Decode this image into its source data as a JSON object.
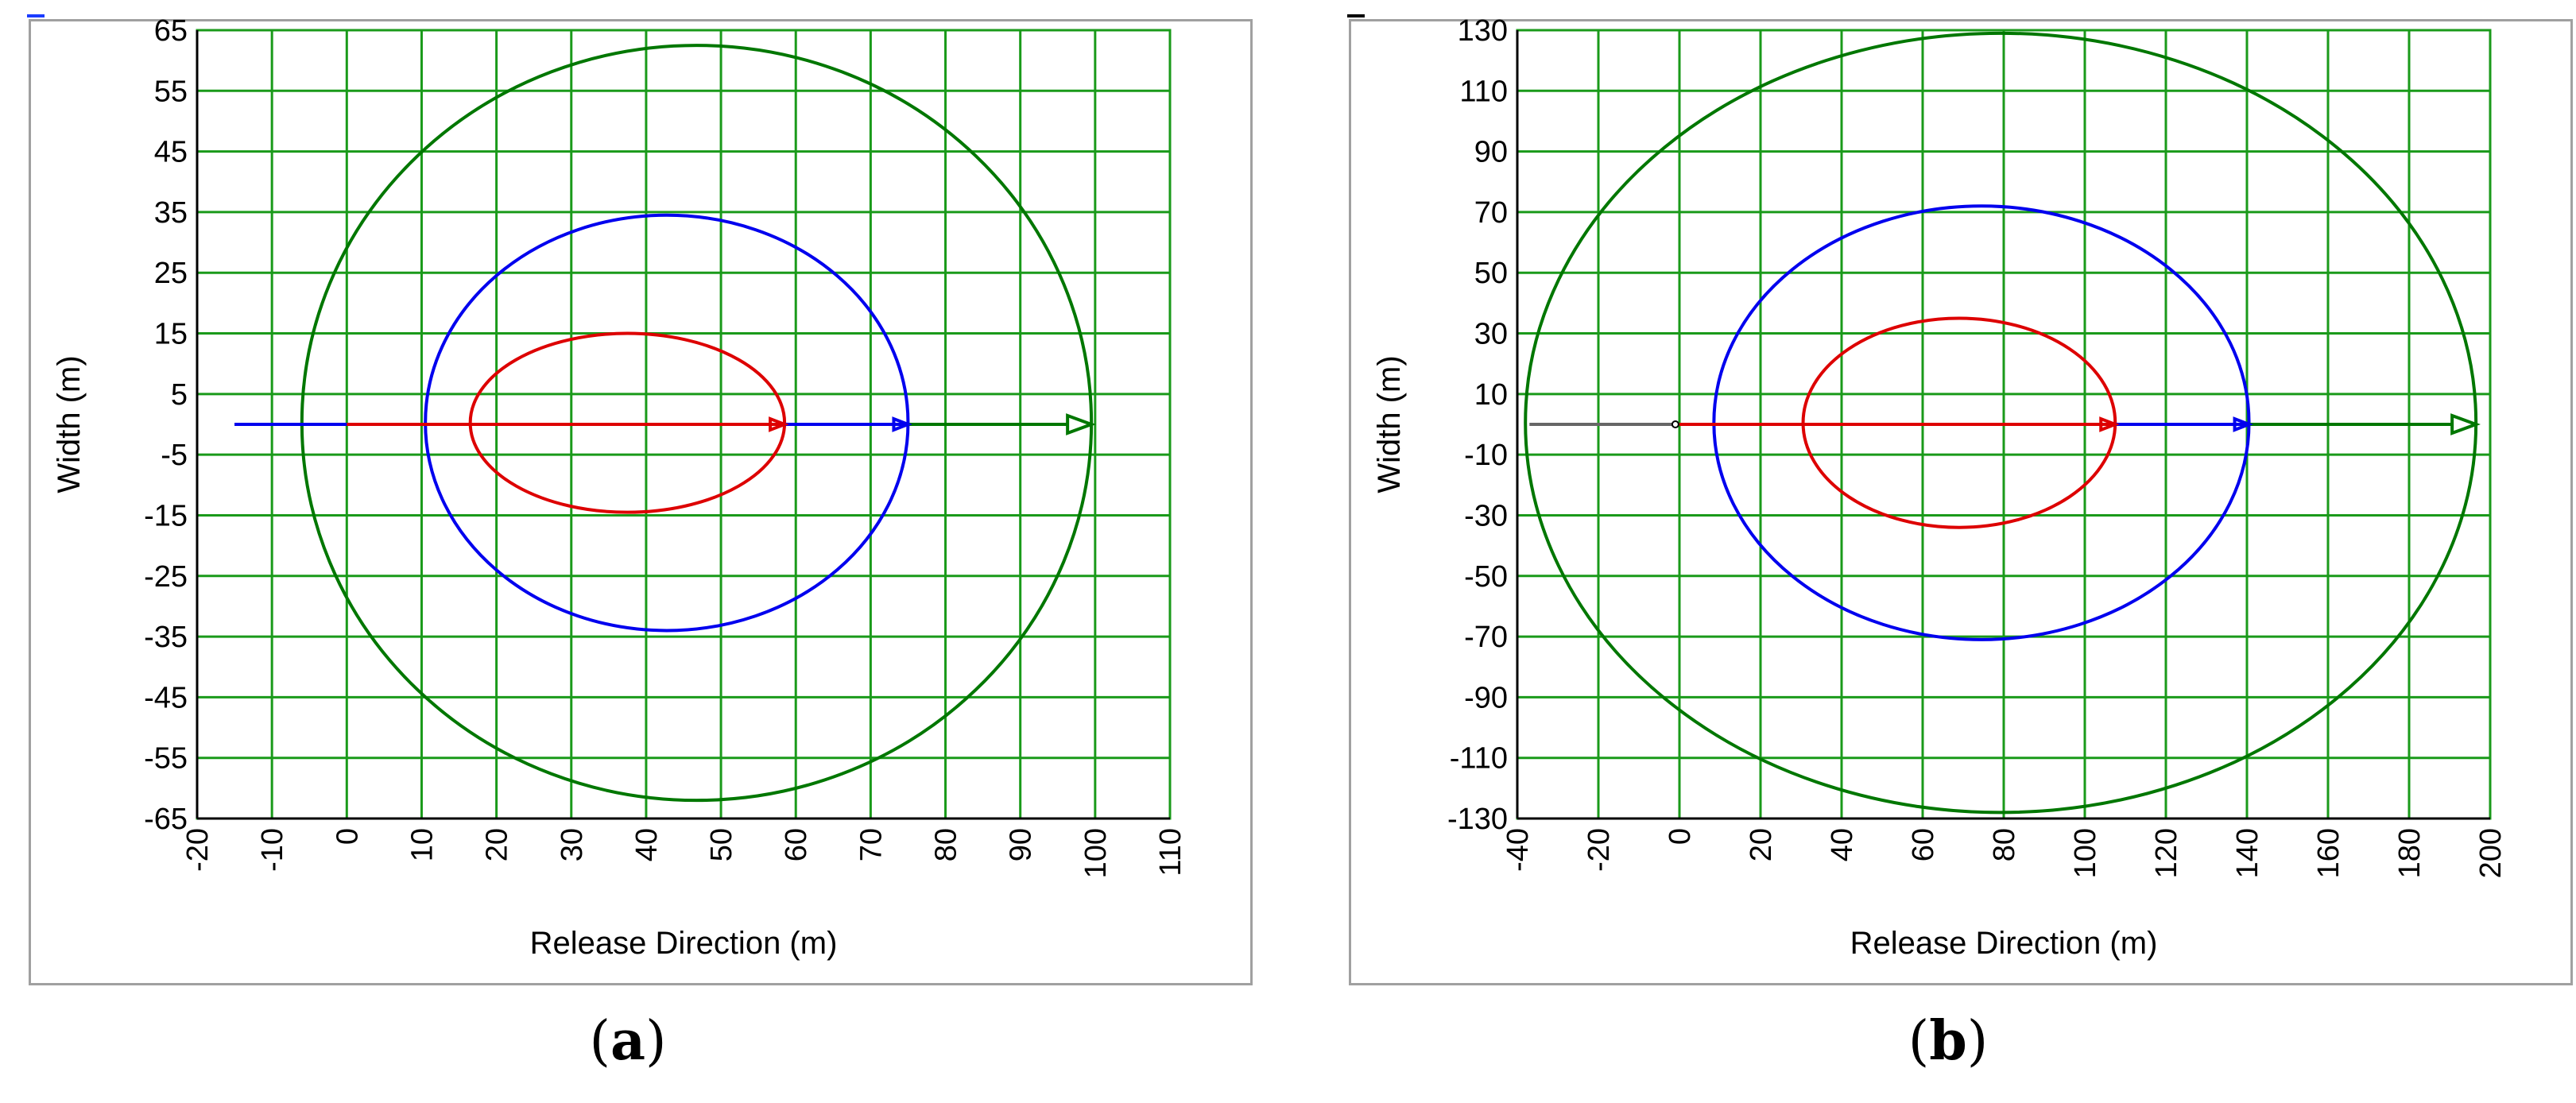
{
  "panels": [
    {
      "caption": "a",
      "topmark_color": "#1a3cff",
      "chart_data": {
        "type": "line",
        "xlabel": "Release Direction (m)",
        "ylabel": "Width (m)",
        "xlim": [
          -20,
          110
        ],
        "ylim": [
          -65,
          65
        ],
        "xticks": [
          -20,
          -10,
          0,
          10,
          20,
          30,
          40,
          50,
          60,
          70,
          80,
          90,
          100,
          110
        ],
        "yticks": [
          65,
          55,
          45,
          35,
          25,
          15,
          5,
          -5,
          -15,
          -25,
          -35,
          -45,
          -55,
          -65
        ],
        "xtick_labels": [
          "-20",
          "-10",
          "0",
          "10",
          "20",
          "30",
          "40",
          "50",
          "60",
          "70",
          "80",
          "90",
          "100",
          "110"
        ],
        "ytick_labels": [
          "65",
          "55",
          "45",
          "35",
          "25",
          "15",
          "5",
          "-5",
          "-15",
          "-25",
          "-35",
          "-45",
          "-55",
          "-65"
        ],
        "grid": true,
        "series": [
          {
            "kind": "ellipse",
            "color": "#dd0000",
            "x_range": [
              16.5,
              58.5
            ],
            "y_range": [
              -14.5,
              15
            ]
          },
          {
            "kind": "ellipse",
            "color": "#0000ee",
            "x_range": [
              10.5,
              75
            ],
            "y_range": [
              -34,
              34.5
            ]
          },
          {
            "kind": "ellipse",
            "color": "#007700",
            "x_range": [
              -6,
              99.5
            ],
            "y_range": [
              -62,
              62.5
            ]
          },
          {
            "kind": "arrow",
            "color": "#007700",
            "from": [
              -15,
              0
            ],
            "to": [
              99.5,
              0
            ]
          },
          {
            "kind": "arrow",
            "color": "#0000ee",
            "from": [
              -15,
              0
            ],
            "to": [
              75,
              0
            ]
          },
          {
            "kind": "arrow",
            "color": "#dd0000",
            "from": [
              0,
              0
            ],
            "to": [
              58.5,
              0
            ]
          }
        ]
      }
    },
    {
      "caption": "b",
      "topmark_color": "#000000",
      "chart_data": {
        "type": "line",
        "xlabel": "Release Direction (m)",
        "ylabel": "Width (m)",
        "xlim": [
          -40,
          200
        ],
        "ylim": [
          -130,
          130
        ],
        "xticks": [
          -40,
          -20,
          0,
          20,
          40,
          60,
          80,
          100,
          120,
          140,
          160,
          180,
          200
        ],
        "yticks": [
          130,
          110,
          90,
          70,
          50,
          30,
          10,
          -10,
          -30,
          -50,
          -70,
          -90,
          -110,
          -130
        ],
        "xtick_labels": [
          "-40",
          "-20",
          "0",
          "20",
          "40",
          "60",
          "80",
          "100",
          "120",
          "140",
          "160",
          "180",
          "200"
        ],
        "ytick_labels": [
          "130",
          "110",
          "90",
          "70",
          "50",
          "30",
          "10",
          "-10",
          "-30",
          "-50",
          "-70",
          "-90",
          "-110",
          "-130"
        ],
        "grid": true,
        "series": [
          {
            "kind": "ellipse",
            "color": "#dd0000",
            "x_range": [
              30.5,
              107.5
            ],
            "y_range": [
              -34,
              35
            ]
          },
          {
            "kind": "ellipse",
            "color": "#0000ee",
            "x_range": [
              8.5,
              140.5
            ],
            "y_range": [
              -71,
              72
            ]
          },
          {
            "kind": "ellipse",
            "color": "#007700",
            "x_range": [
              -38,
              196.5
            ],
            "y_range": [
              -128,
              129
            ]
          },
          {
            "kind": "line",
            "color": "#666666",
            "from": [
              -37,
              0
            ],
            "to": [
              -1,
              0
            ]
          },
          {
            "kind": "arrow",
            "color": "#007700",
            "from": [
              140.5,
              0
            ],
            "to": [
              196.5,
              0
            ]
          },
          {
            "kind": "arrow",
            "color": "#0000ee",
            "from": [
              107.5,
              0
            ],
            "to": [
              140.5,
              0
            ]
          },
          {
            "kind": "arrow",
            "color": "#dd0000",
            "from": [
              0,
              0
            ],
            "to": [
              107.5,
              0
            ]
          }
        ]
      }
    }
  ]
}
